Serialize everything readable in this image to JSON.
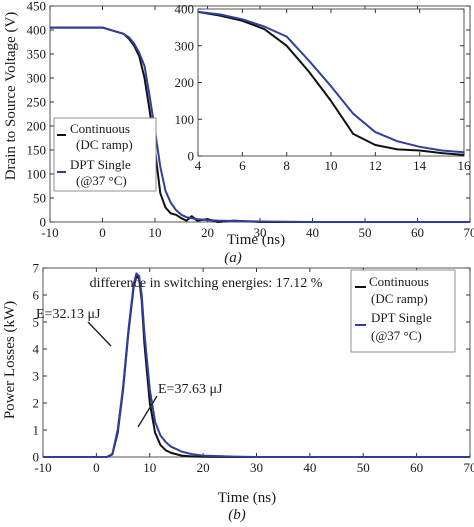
{
  "colors": {
    "continuous": "#111111",
    "dpt": "#2f3f9f",
    "axis": "#333333",
    "frame": "#555555"
  },
  "chart_data": [
    {
      "type": "line",
      "caption": "(a)",
      "xlabel": "Time (ns)",
      "ylabel": "Drain to Source Voltage (V)",
      "xlim": [
        -10,
        70
      ],
      "ylim": [
        0,
        450
      ],
      "xticks": [
        "-10",
        "0",
        "10",
        "20",
        "30",
        "40",
        "50",
        "60",
        "70"
      ],
      "yticks": [
        "0",
        "50",
        "100",
        "150",
        "200",
        "250",
        "300",
        "350",
        "400",
        "450"
      ],
      "grid": false,
      "legend_position": "lower-left",
      "series": [
        {
          "name": "Continuous (DC ramp)",
          "legend_lines": [
            "Continuous",
            "(DC ramp)"
          ],
          "color_key": "continuous",
          "x": [
            -10,
            0,
            4,
            5,
            6,
            7,
            8,
            9,
            10,
            11,
            12,
            13,
            14,
            15,
            16,
            17,
            18,
            20,
            22,
            25,
            30,
            40,
            50,
            60,
            70
          ],
          "y": [
            405,
            405,
            392,
            382,
            368,
            345,
            300,
            230,
            150,
            60,
            30,
            18,
            15,
            8,
            3,
            12,
            3,
            6,
            0,
            3,
            0,
            0,
            0,
            0,
            0
          ]
        },
        {
          "name": "DPT Single (@37 °C)",
          "legend_lines": [
            "DPT Single",
            "(@37 °C)"
          ],
          "color_key": "dpt",
          "x": [
            -10,
            0,
            4,
            5,
            6,
            7,
            8,
            9,
            10,
            11,
            12,
            13,
            14,
            15,
            16,
            17,
            18,
            20,
            22,
            25,
            30,
            40,
            50,
            60,
            70
          ],
          "y": [
            405,
            405,
            392,
            385,
            372,
            352,
            325,
            260,
            190,
            115,
            65,
            40,
            25,
            15,
            10,
            8,
            6,
            4,
            3,
            2,
            1,
            0,
            0,
            0,
            0
          ]
        }
      ],
      "inset": {
        "xlim": [
          4,
          16
        ],
        "ylim": [
          0,
          400
        ],
        "xticks": [
          "4",
          "6",
          "8",
          "10",
          "12",
          "14",
          "16"
        ],
        "yticks": [
          "0",
          "100",
          "200",
          "300",
          "400"
        ]
      }
    },
    {
      "type": "line",
      "caption": "(b)",
      "xlabel": "Time (ns)",
      "ylabel": "Power Losses (kW)",
      "xlim": [
        -10,
        70
      ],
      "ylim": [
        0,
        7
      ],
      "xticks": [
        "-10",
        "0",
        "10",
        "20",
        "30",
        "40",
        "50",
        "60",
        "70"
      ],
      "yticks": [
        "0",
        "1",
        "2",
        "3",
        "4",
        "5",
        "6",
        "7"
      ],
      "grid": false,
      "legend_position": "upper-right",
      "title": "difference in switching energies: 17.12 %",
      "annotations": [
        {
          "text": "E=32.13 μJ",
          "x": 6.5,
          "y": 4.5
        },
        {
          "text": "E=37.63 μJ",
          "x": 10.5,
          "y": 1.8
        }
      ],
      "series": [
        {
          "name": "Continuous (DC ramp)",
          "legend_lines": [
            "Continuous",
            "(DC ramp)"
          ],
          "color_key": "continuous",
          "x": [
            -10,
            2,
            3,
            4,
            5,
            6,
            7,
            7.5,
            8,
            8.5,
            9,
            10,
            11,
            12,
            13,
            14,
            16,
            18,
            20,
            25,
            30,
            70
          ],
          "y": [
            0,
            0,
            0.1,
            0.9,
            2.5,
            4.6,
            6.3,
            6.7,
            6.6,
            5.8,
            4.2,
            2.0,
            0.9,
            0.45,
            0.25,
            0.15,
            0.05,
            0.02,
            0.01,
            0,
            0,
            0
          ]
        },
        {
          "name": "DPT Single (@37 °C)",
          "legend_lines": [
            "DPT Single",
            "(@37 °C)"
          ],
          "color_key": "dpt",
          "x": [
            -10,
            2,
            3,
            4,
            5,
            6,
            7,
            7.5,
            8,
            8.5,
            9,
            10,
            11,
            12,
            13,
            14,
            16,
            18,
            20,
            25,
            30,
            70
          ],
          "y": [
            0,
            0,
            0.12,
            1.0,
            2.6,
            4.7,
            6.4,
            6.8,
            6.7,
            6.0,
            4.6,
            2.5,
            1.3,
            0.8,
            0.55,
            0.38,
            0.2,
            0.1,
            0.05,
            0.02,
            0,
            0
          ]
        }
      ]
    }
  ]
}
